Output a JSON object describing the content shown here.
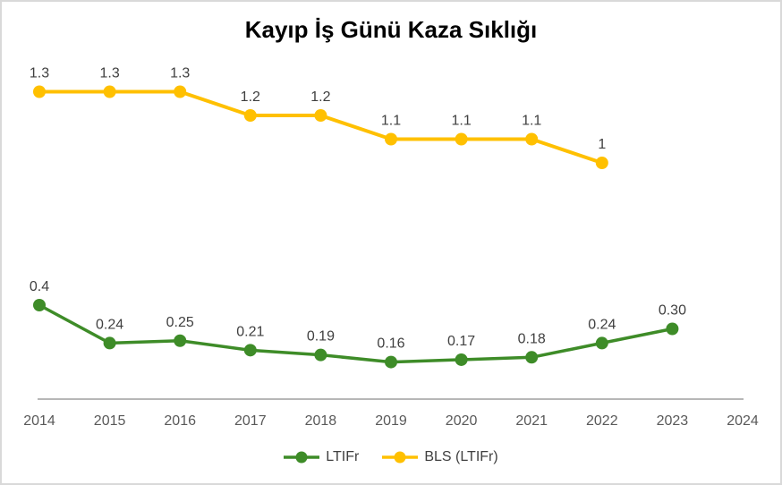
{
  "chart_data": {
    "type": "line",
    "title": "Kayıp İş Günü Kaza Sıklığı",
    "xlabel": "",
    "ylabel": "",
    "x_tick_labels": [
      "2014",
      "2015",
      "2016",
      "2017",
      "2018",
      "2019",
      "2020",
      "2021",
      "2022",
      "2023",
      "2024"
    ],
    "ylim": [
      0,
      1.45
    ],
    "grid": false,
    "legend_position": "bottom",
    "series": [
      {
        "name": "LTIFr",
        "color": "#3e8c28",
        "x": [
          2014,
          2015,
          2016,
          2017,
          2018,
          2019,
          2020,
          2021,
          2022,
          2023
        ],
        "values": [
          0.4,
          0.24,
          0.25,
          0.21,
          0.19,
          0.16,
          0.17,
          0.18,
          0.24,
          0.3
        ],
        "labels": [
          "0.4",
          "0.24",
          "0.25",
          "0.21",
          "0.19",
          "0.16",
          "0.17",
          "0.18",
          "0.24",
          "0.30"
        ]
      },
      {
        "name": "BLS (LTIFr)",
        "color": "#ffc000",
        "x": [
          2014,
          2015,
          2016,
          2017,
          2018,
          2019,
          2020,
          2021,
          2022
        ],
        "values": [
          1.3,
          1.3,
          1.3,
          1.2,
          1.2,
          1.1,
          1.1,
          1.1,
          1.0
        ],
        "labels": [
          "1.3",
          "1.3",
          "1.3",
          "1.2",
          "1.2",
          "1.1",
          "1.1",
          "1.1",
          "1"
        ]
      }
    ]
  },
  "colors": {
    "axis_line": "#b7b7b7",
    "tick_label": "#595959",
    "data_label": "#404040",
    "legend_text": "#404040",
    "title_text": "#000000",
    "frame_border": "#d9d9d9",
    "background": "#ffffff"
  }
}
